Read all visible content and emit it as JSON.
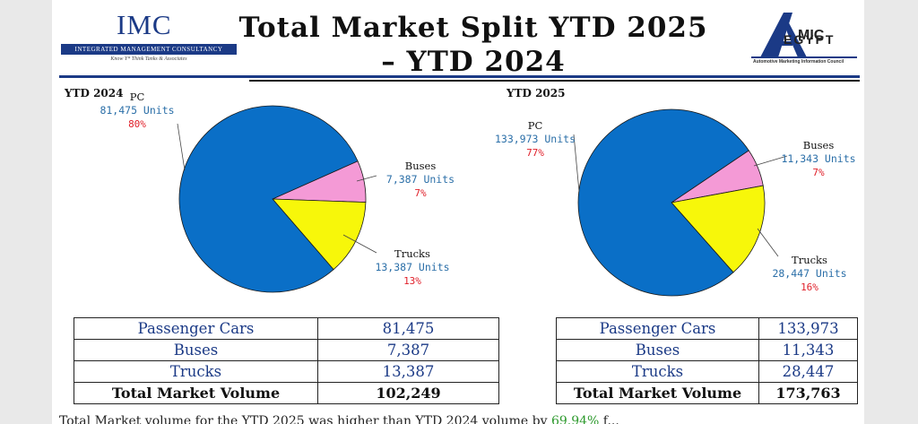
{
  "header": {
    "title_line1": "Total Market Split YTD 2025",
    "title_line2": "– YTD 2024",
    "imc_logo_text": "IMC",
    "imc_logo_bar": "INTEGRATED MANAGEMENT CONSULTANCY",
    "imc_logo_tagline": "Know Y* Think Tanks & Associates",
    "amic_logo_text": "EGYPT",
    "amic_logo_sub": "Automotive Marketing Information Council"
  },
  "colors": {
    "pc": "#0a6fc7",
    "buses": "#f49ad6",
    "trucks": "#f7f70a",
    "units_text": "#2b6fa8",
    "pct_text": "#e0202a",
    "brand_blue": "#1b3a86"
  },
  "chart_data": [
    {
      "type": "pie",
      "title": "YTD 2024",
      "categories": [
        "PC",
        "Buses",
        "Trucks"
      ],
      "values": [
        81475,
        7387,
        13387
      ],
      "unit_labels": [
        "81,475 Units",
        "7,387 Units",
        "13,387 Units"
      ],
      "percent_labels": [
        "80%",
        "7%",
        "13%"
      ]
    },
    {
      "type": "pie",
      "title": "YTD 2025",
      "categories": [
        "PC",
        "Buses",
        "Trucks"
      ],
      "values": [
        133973,
        11343,
        28447
      ],
      "unit_labels": [
        "133,973 Units",
        "11,343 Units",
        "28,447 Units"
      ],
      "percent_labels": [
        "77%",
        "7%",
        "16%"
      ]
    }
  ],
  "tables": [
    {
      "rows": [
        {
          "label": "Passenger Cars",
          "value": "81,475"
        },
        {
          "label": "Buses",
          "value": "7,387"
        },
        {
          "label": "Trucks",
          "value": "13,387"
        },
        {
          "label": "Total Market Volume",
          "value": "102,249"
        }
      ]
    },
    {
      "rows": [
        {
          "label": "Passenger Cars",
          "value": "133,973"
        },
        {
          "label": "Buses",
          "value": "11,343"
        },
        {
          "label": "Trucks",
          "value": "28,447"
        },
        {
          "label": "Total Market Volume",
          "value": "173,763"
        }
      ]
    }
  ],
  "footer": {
    "text_before": "Total Market volume for the YTD 2025 was higher than YTD 2024 volume by ",
    "highlight": "69.94%",
    "text_after": " f..."
  }
}
